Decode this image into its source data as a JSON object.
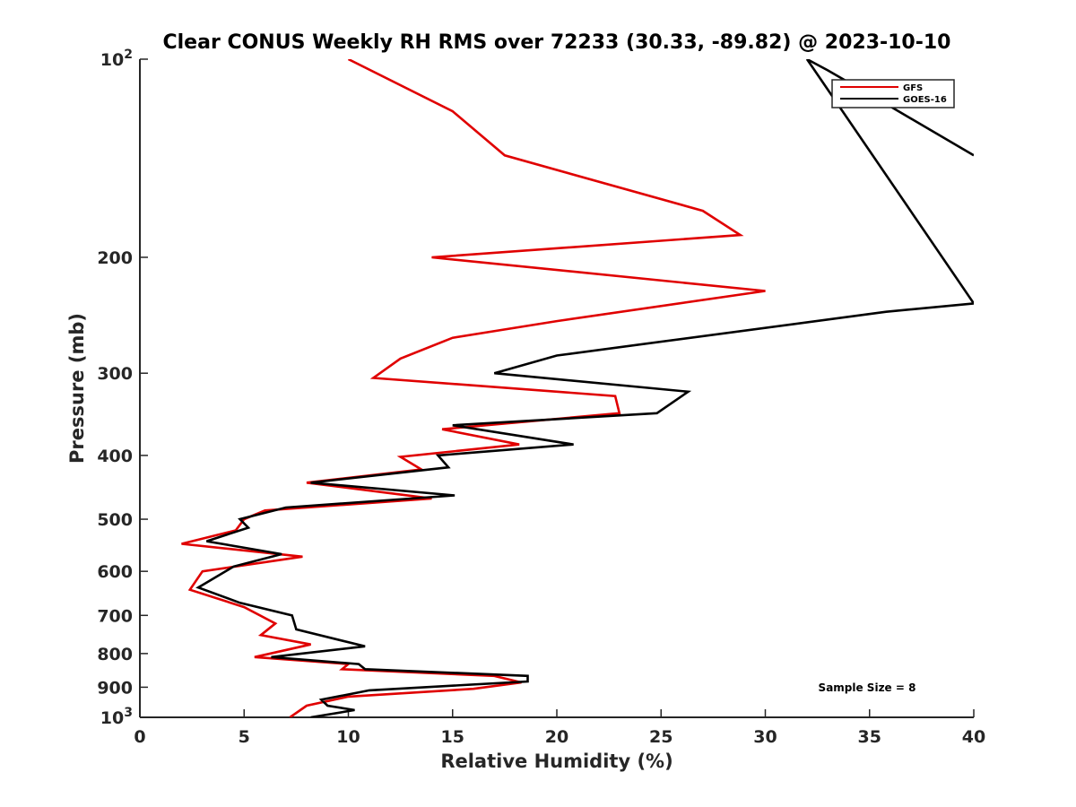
{
  "chart_data": {
    "type": "line",
    "title": "Clear CONUS Weekly RH RMS over 72233 (30.33, -89.82) @ 2023-10-10",
    "xlabel": "Relative Humidity (%)",
    "ylabel": "Pressure (mb)",
    "xlim": [
      0,
      40
    ],
    "ylim": [
      100,
      1000
    ],
    "y_scale": "log",
    "y_reversed": true,
    "grid": false,
    "legend_position": "top-right",
    "x_ticks": [
      0,
      5,
      10,
      15,
      20,
      25,
      30,
      35,
      40
    ],
    "y_ticks": [
      {
        "value": 100,
        "label": "10",
        "sup": "2"
      },
      {
        "value": 200,
        "label": "200",
        "sup": ""
      },
      {
        "value": 300,
        "label": "300",
        "sup": ""
      },
      {
        "value": 400,
        "label": "400",
        "sup": ""
      },
      {
        "value": 500,
        "label": "500",
        "sup": ""
      },
      {
        "value": 600,
        "label": "600",
        "sup": ""
      },
      {
        "value": 700,
        "label": "700",
        "sup": ""
      },
      {
        "value": 800,
        "label": "800",
        "sup": ""
      },
      {
        "value": 900,
        "label": "900",
        "sup": ""
      },
      {
        "value": 1000,
        "label": "10",
        "sup": "3"
      }
    ],
    "series": [
      {
        "name": "GFS",
        "color": "#e00000",
        "points": [
          {
            "x": 10.0,
            "y": 100
          },
          {
            "x": 15.0,
            "y": 120
          },
          {
            "x": 17.5,
            "y": 140
          },
          {
            "x": 27.0,
            "y": 170
          },
          {
            "x": 28.8,
            "y": 185
          },
          {
            "x": 14.0,
            "y": 200
          },
          {
            "x": 30.0,
            "y": 225
          },
          {
            "x": 20.0,
            "y": 250
          },
          {
            "x": 15.0,
            "y": 265
          },
          {
            "x": 12.5,
            "y": 285
          },
          {
            "x": 11.2,
            "y": 305
          },
          {
            "x": 22.8,
            "y": 325
          },
          {
            "x": 23.0,
            "y": 345
          },
          {
            "x": 14.5,
            "y": 365
          },
          {
            "x": 18.2,
            "y": 385
          },
          {
            "x": 12.5,
            "y": 402
          },
          {
            "x": 13.5,
            "y": 420
          },
          {
            "x": 8.0,
            "y": 440
          },
          {
            "x": 14.0,
            "y": 465
          },
          {
            "x": 6.0,
            "y": 485
          },
          {
            "x": 5.0,
            "y": 500
          },
          {
            "x": 4.6,
            "y": 520
          },
          {
            "x": 2.0,
            "y": 545
          },
          {
            "x": 7.8,
            "y": 570
          },
          {
            "x": 3.0,
            "y": 600
          },
          {
            "x": 2.4,
            "y": 640
          },
          {
            "x": 5.0,
            "y": 680
          },
          {
            "x": 6.5,
            "y": 720
          },
          {
            "x": 5.8,
            "y": 750
          },
          {
            "x": 8.2,
            "y": 775
          },
          {
            "x": 5.5,
            "y": 810
          },
          {
            "x": 10.0,
            "y": 830
          },
          {
            "x": 9.7,
            "y": 845
          },
          {
            "x": 17.0,
            "y": 865
          },
          {
            "x": 18.3,
            "y": 885
          },
          {
            "x": 16.0,
            "y": 905
          },
          {
            "x": 10.0,
            "y": 930
          },
          {
            "x": 8.0,
            "y": 960
          },
          {
            "x": 7.2,
            "y": 1000
          }
        ]
      },
      {
        "name": "GOES-16",
        "color": "#000000",
        "points": [
          {
            "x": 40.0,
            "y": 140
          },
          {
            "x": 36.0,
            "y": 118
          },
          {
            "x": 33.0,
            "y": 104
          },
          {
            "x": 32.0,
            "y": 100
          },
          {
            "x": 40.0,
            "y": 235
          },
          {
            "x": 35.8,
            "y": 242
          },
          {
            "x": 20.0,
            "y": 282
          },
          {
            "x": 17.0,
            "y": 300
          },
          {
            "x": 26.3,
            "y": 320
          },
          {
            "x": 24.8,
            "y": 345
          },
          {
            "x": 15.0,
            "y": 360
          },
          {
            "x": 20.8,
            "y": 385
          },
          {
            "x": 14.3,
            "y": 400
          },
          {
            "x": 14.8,
            "y": 417
          },
          {
            "x": 8.2,
            "y": 440
          },
          {
            "x": 15.1,
            "y": 460
          },
          {
            "x": 7.0,
            "y": 480
          },
          {
            "x": 4.8,
            "y": 500
          },
          {
            "x": 5.2,
            "y": 515
          },
          {
            "x": 3.2,
            "y": 540
          },
          {
            "x": 6.8,
            "y": 565
          },
          {
            "x": 4.5,
            "y": 590
          },
          {
            "x": 2.8,
            "y": 635
          },
          {
            "x": 4.8,
            "y": 670
          },
          {
            "x": 7.3,
            "y": 700
          },
          {
            "x": 7.5,
            "y": 735
          },
          {
            "x": 10.8,
            "y": 780
          },
          {
            "x": 6.3,
            "y": 810
          },
          {
            "x": 10.5,
            "y": 830
          },
          {
            "x": 10.8,
            "y": 845
          },
          {
            "x": 18.6,
            "y": 865
          },
          {
            "x": 18.6,
            "y": 882
          },
          {
            "x": 11.0,
            "y": 910
          },
          {
            "x": 8.7,
            "y": 940
          },
          {
            "x": 9.0,
            "y": 960
          },
          {
            "x": 10.3,
            "y": 975
          },
          {
            "x": 8.2,
            "y": 1000
          }
        ]
      }
    ],
    "annotations": [
      {
        "text": "Sample Size = 8",
        "x": 33,
        "y": 900
      }
    ]
  }
}
